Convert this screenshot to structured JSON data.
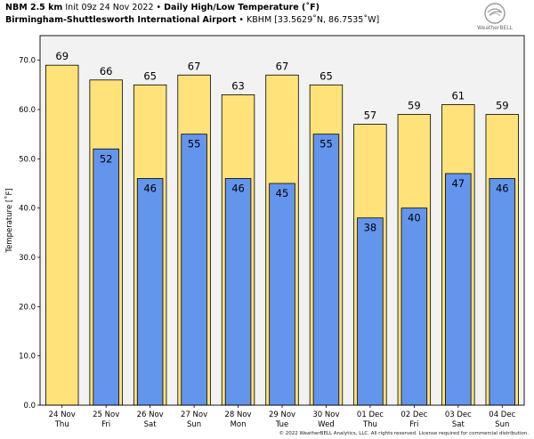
{
  "header": {
    "model": "NBM 2.5 km",
    "init": "Init 09z 24 Nov 2022",
    "sep": "•",
    "product": "Daily High/Low Temperature (˚F)",
    "station_name": "Birmingham-Shuttlesworth International Airport",
    "station_info": "KBHM [33.5629˚N, 86.7535˚W]"
  },
  "logo": {
    "text": "WeatherBELL",
    "icon": "weatherbell-swirl-logo"
  },
  "footer": "© 2022 WeatherBELL Analytics, LLC. All rights reserved. License required for commercial distribution.",
  "colors": {
    "high": "#ffe27a",
    "low": "#6495ed",
    "plot_bg": "#f2f2f2"
  },
  "chart_data": {
    "type": "bar",
    "ylabel": "Temperature [˚F]",
    "ylim": [
      0,
      75
    ],
    "yticks": [
      0,
      10,
      20,
      30,
      40,
      50,
      60,
      70
    ],
    "ytick_labels": [
      "0.0",
      "10.0",
      "20.0",
      "30.0",
      "40.0",
      "50.0",
      "60.0",
      "70.0"
    ],
    "grid": false,
    "categories": [
      {
        "date": "24 Nov",
        "day": "Thu"
      },
      {
        "date": "25 Nov",
        "day": "Fri"
      },
      {
        "date": "26 Nov",
        "day": "Sat"
      },
      {
        "date": "27 Nov",
        "day": "Sun"
      },
      {
        "date": "28 Nov",
        "day": "Mon"
      },
      {
        "date": "29 Nov",
        "day": "Tue"
      },
      {
        "date": "30 Nov",
        "day": "Wed"
      },
      {
        "date": "01 Dec",
        "day": "Thu"
      },
      {
        "date": "02 Dec",
        "day": "Fri"
      },
      {
        "date": "03 Dec",
        "day": "Sat"
      },
      {
        "date": "04 Dec",
        "day": "Sun"
      }
    ],
    "series": [
      {
        "values": [
          69,
          66,
          65,
          67,
          63,
          67,
          65,
          57,
          59,
          61,
          59
        ]
      },
      {
        "values": [
          null,
          52,
          46,
          55,
          46,
          45,
          55,
          38,
          40,
          47,
          46
        ]
      }
    ]
  }
}
